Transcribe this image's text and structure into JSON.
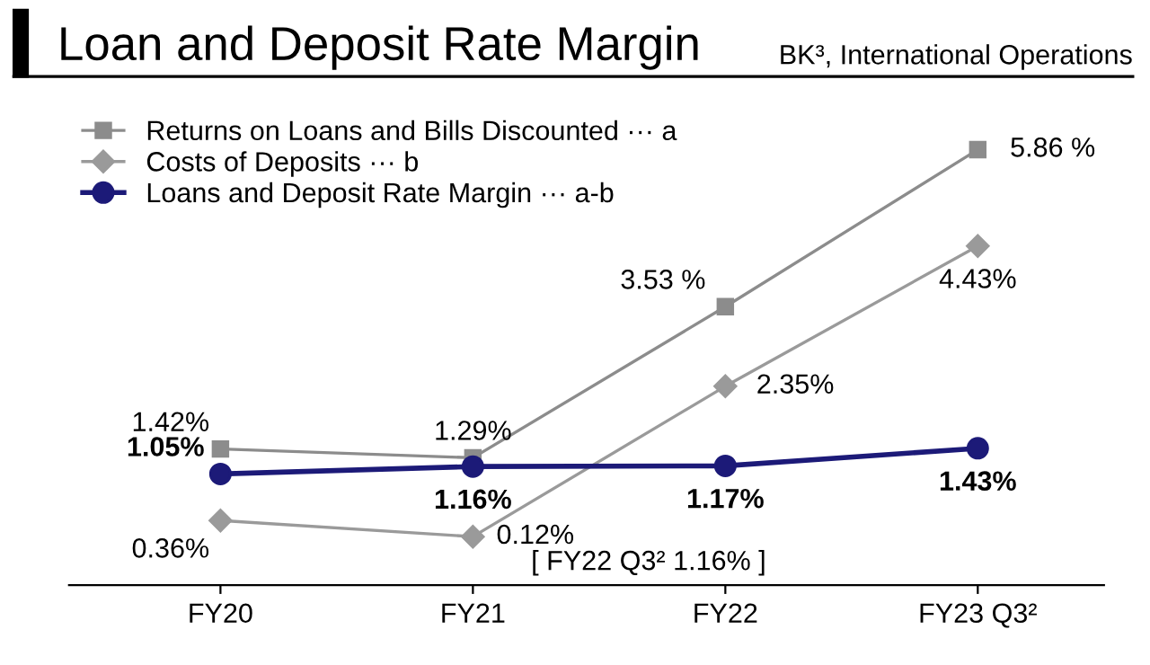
{
  "chart_data": {
    "type": "line",
    "title": "Loan and Deposit Rate Margin",
    "subtitle": "BK³, International Operations",
    "categories": [
      "FY20",
      "FY21",
      "FY22",
      "FY23 Q3²"
    ],
    "series": [
      {
        "name": "Returns on Loans and Bills Discounted ··· a",
        "color": "#8c8c8c",
        "marker": "square",
        "values": [
          1.42,
          1.29,
          3.53,
          5.86
        ],
        "value_labels": [
          "1.42%",
          "1.29%",
          "3.53 %",
          "5.86 %"
        ]
      },
      {
        "name": "Costs of Deposits ··· b",
        "color": "#9a9a9a",
        "marker": "diamond",
        "values": [
          0.36,
          0.12,
          2.35,
          4.43
        ],
        "value_labels": [
          "0.36%",
          "0.12%",
          "2.35%",
          "4.43%"
        ]
      },
      {
        "name": "Loans and Deposit Rate Margin ··· a-b",
        "color": "#1c1a78",
        "marker": "circle",
        "values": [
          1.05,
          1.16,
          1.17,
          1.43
        ],
        "value_labels": [
          "1.05%",
          "1.16%",
          "1.17%",
          "1.43%"
        ]
      }
    ],
    "annotations": [
      "[ FY22 Q3² 1.16% ]"
    ],
    "legend": "top left",
    "grid": false,
    "line_style": "solid"
  }
}
